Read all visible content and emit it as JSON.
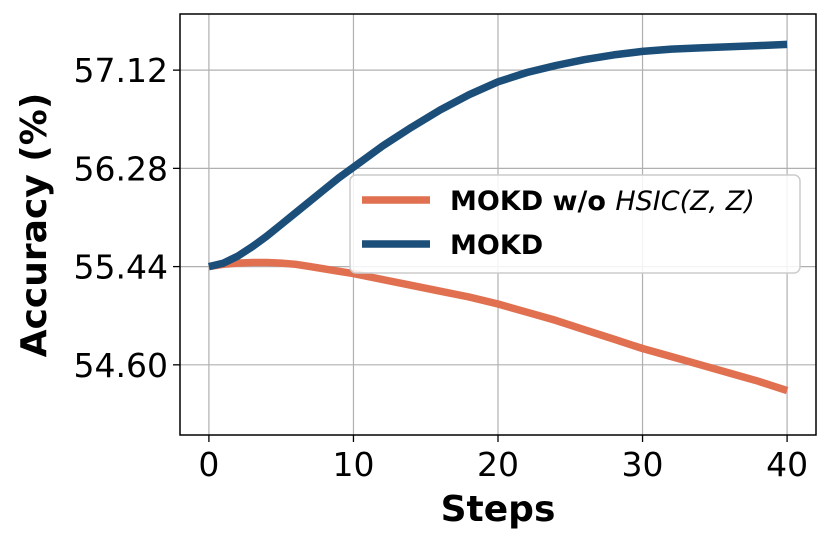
{
  "chart_data": {
    "type": "line",
    "xlabel": "Steps",
    "ylabel": "Accuracy (%)",
    "xlim": [
      -2,
      42
    ],
    "ylim": [
      54.0,
      57.6
    ],
    "xticks": [
      0,
      10,
      20,
      30,
      40
    ],
    "xtick_labels": [
      "0",
      "10",
      "20",
      "30",
      "40"
    ],
    "yticks": [
      54.6,
      55.44,
      56.28,
      57.12
    ],
    "ytick_labels": [
      "54.60",
      "55.44",
      "56.28",
      "57.12"
    ],
    "grid": true,
    "legend_position": "center-right",
    "series": [
      {
        "name": "MOKD w/o HSIC(Z, Z)",
        "legend_parts": {
          "bold": "MOKD w/o ",
          "italic": "HSIC",
          "rest": "(Z, Z)"
        },
        "color": "#e07050",
        "x": [
          0,
          1,
          2,
          3,
          4,
          5,
          6,
          7,
          8,
          9,
          10,
          12,
          14,
          16,
          18,
          20,
          22,
          24,
          26,
          28,
          30,
          32,
          34,
          36,
          38,
          40
        ],
        "y": [
          55.44,
          55.46,
          55.47,
          55.475,
          55.475,
          55.47,
          55.46,
          55.44,
          55.42,
          55.4,
          55.38,
          55.33,
          55.28,
          55.23,
          55.18,
          55.12,
          55.05,
          54.98,
          54.9,
          54.82,
          54.74,
          54.67,
          54.6,
          54.53,
          54.46,
          54.38
        ]
      },
      {
        "name": "MOKD",
        "legend_parts": {
          "bold": "MOKD",
          "italic": "",
          "rest": ""
        },
        "color": "#1b4f7a",
        "x": [
          0,
          1,
          2,
          3,
          4,
          5,
          6,
          7,
          8,
          9,
          10,
          12,
          14,
          16,
          18,
          20,
          22,
          24,
          26,
          28,
          30,
          32,
          34,
          36,
          38,
          40
        ],
        "y": [
          55.44,
          55.47,
          55.53,
          55.61,
          55.7,
          55.8,
          55.9,
          56.0,
          56.1,
          56.2,
          56.29,
          56.47,
          56.63,
          56.78,
          56.91,
          57.02,
          57.1,
          57.16,
          57.21,
          57.25,
          57.28,
          57.3,
          57.31,
          57.32,
          57.33,
          57.34
        ]
      }
    ]
  }
}
